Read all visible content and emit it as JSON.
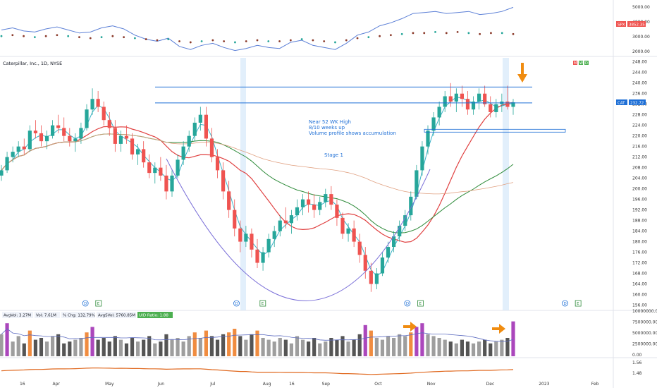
{
  "chart_data": {
    "type": "candlestick",
    "symbol_header": "Caterpillar, Inc., 1D, NYSE",
    "header_flags": [
      "M",
      "W",
      "D"
    ],
    "price_axis": {
      "min": 154,
      "max": 249,
      "ticks": [
        "248.00",
        "244.00",
        "240.00",
        "236.00",
        "232.00",
        "228.00",
        "224.00",
        "220.00",
        "216.00",
        "212.00",
        "208.00",
        "204.00",
        "200.00",
        "196.00",
        "192.00",
        "188.00",
        "184.00",
        "180.00",
        "176.00",
        "172.00",
        "168.00",
        "164.00",
        "160.00",
        "156.00"
      ],
      "last_label": "CAT",
      "last_value": "232.72",
      "last_price": 232.72
    },
    "spx_panel": {
      "ticks": [
        "5000.00",
        "4000.00",
        "3000.00",
        "2000.00"
      ],
      "label": "SPX",
      "value": "3852.35",
      "line_a": [
        4.1,
        4.3,
        4.0,
        3.9,
        4.2,
        4.4,
        4.1,
        3.8,
        3.9,
        4.3,
        4.5,
        4.2,
        3.6,
        3.2,
        3.0,
        3.3,
        2.5,
        2.2,
        2.6,
        2.8,
        2.4,
        2.1,
        2.3,
        2.6,
        2.4,
        2.3,
        2.9,
        3.1,
        2.6,
        2.4,
        2.2,
        2.8,
        3.6,
        3.9,
        4.5,
        4.8,
        5.2,
        5.7,
        5.8,
        5.9,
        5.7,
        5.8,
        5.9,
        5.6,
        5.7,
        5.9,
        6.3
      ],
      "line_b": [
        3.5,
        3.6,
        3.5,
        3.4,
        3.5,
        3.6,
        3.5,
        3.4,
        3.3,
        3.4,
        3.5,
        3.4,
        3.3,
        3.2,
        3.1,
        3.2,
        3.0,
        2.9,
        3.0,
        3.1,
        3.0,
        2.9,
        3.0,
        3.1,
        3.0,
        3.0,
        3.1,
        3.2,
        3.1,
        3.0,
        2.9,
        3.1,
        3.3,
        3.4,
        3.5,
        3.6,
        3.7,
        3.8,
        3.8,
        3.9,
        3.8,
        3.9,
        3.8,
        3.7,
        3.8,
        3.8,
        3.7
      ]
    },
    "annotations": [
      "Near 52 WK High",
      "8/10 weeks up",
      "Volume profile shows accumulation",
      "Stage 1"
    ],
    "x_axis_labels": [
      "16",
      "Apr",
      "May",
      "Jun",
      "Jul",
      "Aug",
      "16",
      "Sep",
      "Oct",
      "Nov",
      "Dec",
      "2023",
      "Feb"
    ],
    "x_axis_positions": [
      0.03,
      0.08,
      0.16,
      0.24,
      0.32,
      0.4,
      0.44,
      0.49,
      0.57,
      0.65,
      0.74,
      0.82,
      0.9
    ],
    "event_markers": [
      {
        "x": 0.13,
        "kind": "D"
      },
      {
        "x": 0.15,
        "kind": "E"
      },
      {
        "x": 0.36,
        "kind": "D"
      },
      {
        "x": 0.4,
        "kind": "E"
      },
      {
        "x": 0.62,
        "kind": "D"
      },
      {
        "x": 0.64,
        "kind": "E"
      },
      {
        "x": 0.86,
        "kind": "D"
      },
      {
        "x": 0.88,
        "kind": "E"
      }
    ],
    "horizontal_levels": [
      238.5,
      232.5
    ],
    "candles": [
      [
        205,
        209,
        203,
        207
      ],
      [
        207,
        214,
        206,
        212
      ],
      [
        212,
        216,
        210,
        214
      ],
      [
        214,
        218,
        212,
        216
      ],
      [
        216,
        219,
        213,
        215
      ],
      [
        215,
        224,
        214,
        222
      ],
      [
        222,
        226,
        219,
        221
      ],
      [
        221,
        224,
        216,
        218
      ],
      [
        218,
        222,
        215,
        220
      ],
      [
        220,
        226,
        219,
        224
      ],
      [
        224,
        228,
        221,
        223
      ],
      [
        223,
        227,
        218,
        220
      ],
      [
        220,
        223,
        216,
        218
      ],
      [
        218,
        221,
        214,
        219
      ],
      [
        219,
        225,
        217,
        223
      ],
      [
        223,
        232,
        222,
        230
      ],
      [
        230,
        238,
        228,
        234
      ],
      [
        234,
        237,
        229,
        231
      ],
      [
        231,
        233,
        224,
        226
      ],
      [
        226,
        229,
        220,
        223
      ],
      [
        223,
        226,
        214,
        217
      ],
      [
        217,
        222,
        214,
        220
      ],
      [
        220,
        224,
        217,
        219
      ],
      [
        219,
        221,
        211,
        213
      ],
      [
        213,
        217,
        209,
        215
      ],
      [
        215,
        218,
        208,
        210
      ],
      [
        210,
        213,
        204,
        206
      ],
      [
        206,
        210,
        202,
        208
      ],
      [
        208,
        212,
        203,
        205
      ],
      [
        205,
        209,
        196,
        199
      ],
      [
        199,
        207,
        197,
        205
      ],
      [
        205,
        213,
        204,
        211
      ],
      [
        211,
        218,
        209,
        216
      ],
      [
        216,
        222,
        214,
        220
      ],
      [
        220,
        227,
        218,
        225
      ],
      [
        225,
        231,
        222,
        228
      ],
      [
        228,
        231,
        216,
        219
      ],
      [
        219,
        223,
        210,
        212
      ],
      [
        212,
        215,
        204,
        207
      ],
      [
        207,
        210,
        196,
        199
      ],
      [
        199,
        203,
        189,
        192
      ],
      [
        192,
        196,
        182,
        185
      ],
      [
        185,
        188,
        176,
        180
      ],
      [
        180,
        186,
        178,
        183
      ],
      [
        183,
        185,
        174,
        177
      ],
      [
        177,
        181,
        170,
        172
      ],
      [
        172,
        178,
        169,
        176
      ],
      [
        176,
        183,
        174,
        181
      ],
      [
        181,
        186,
        178,
        184
      ],
      [
        184,
        190,
        182,
        188
      ],
      [
        188,
        193,
        185,
        187
      ],
      [
        187,
        192,
        183,
        190
      ],
      [
        190,
        196,
        188,
        193
      ],
      [
        193,
        198,
        190,
        196
      ],
      [
        196,
        199,
        191,
        194
      ],
      [
        194,
        198,
        189,
        192
      ],
      [
        192,
        197,
        190,
        195
      ],
      [
        195,
        200,
        193,
        198
      ],
      [
        198,
        201,
        192,
        194
      ],
      [
        194,
        196,
        186,
        189
      ],
      [
        189,
        191,
        181,
        183
      ],
      [
        183,
        187,
        180,
        185
      ],
      [
        185,
        188,
        178,
        180
      ],
      [
        180,
        183,
        172,
        175
      ],
      [
        175,
        178,
        166,
        169
      ],
      [
        169,
        172,
        161,
        164
      ],
      [
        164,
        170,
        162,
        168
      ],
      [
        168,
        176,
        167,
        174
      ],
      [
        174,
        180,
        172,
        178
      ],
      [
        178,
        184,
        176,
        182
      ],
      [
        182,
        188,
        180,
        186
      ],
      [
        186,
        192,
        184,
        190
      ],
      [
        190,
        199,
        188,
        197
      ],
      [
        197,
        209,
        196,
        207
      ],
      [
        207,
        218,
        205,
        216
      ],
      [
        216,
        224,
        213,
        222
      ],
      [
        222,
        229,
        220,
        227
      ],
      [
        227,
        233,
        224,
        231
      ],
      [
        231,
        237,
        229,
        235
      ],
      [
        235,
        240,
        231,
        233
      ],
      [
        233,
        238,
        229,
        236
      ],
      [
        236,
        239,
        231,
        234
      ],
      [
        234,
        237,
        228,
        230
      ],
      [
        230,
        235,
        228,
        233
      ],
      [
        233,
        238,
        230,
        236
      ],
      [
        236,
        239,
        231,
        232
      ],
      [
        232,
        235,
        227,
        229
      ],
      [
        229,
        234,
        227,
        232
      ],
      [
        232,
        236,
        229,
        233
      ],
      [
        233,
        239,
        230,
        231
      ],
      [
        231,
        234,
        228,
        232.72
      ]
    ],
    "volume": [
      0.6,
      0.9,
      0.4,
      0.55,
      0.35,
      0.7,
      0.45,
      0.5,
      0.4,
      0.55,
      0.6,
      0.35,
      0.4,
      0.45,
      0.5,
      0.65,
      0.8,
      0.45,
      0.5,
      0.4,
      0.55,
      0.45,
      0.35,
      0.5,
      0.4,
      0.45,
      0.55,
      0.35,
      0.4,
      0.6,
      0.45,
      0.5,
      0.4,
      0.55,
      0.65,
      0.5,
      0.7,
      0.55,
      0.45,
      0.6,
      0.65,
      0.75,
      0.55,
      0.45,
      0.6,
      0.7,
      0.5,
      0.45,
      0.4,
      0.5,
      0.45,
      0.35,
      0.55,
      0.45,
      0.4,
      0.5,
      0.35,
      0.4,
      0.5,
      0.45,
      0.55,
      0.4,
      0.45,
      0.6,
      0.85,
      0.7,
      0.5,
      0.45,
      0.55,
      0.5,
      0.6,
      0.55,
      0.65,
      0.8,
      0.9,
      0.6,
      0.55,
      0.5,
      0.45,
      0.4,
      0.35,
      0.45,
      0.4,
      0.35,
      0.4,
      0.45,
      0.35,
      0.4,
      0.45,
      0.5,
      0.95
    ],
    "volume_axis": [
      "10000000.00",
      "7500000.00",
      "5000000.00",
      "2500000.00",
      "0.00"
    ],
    "volume_stats": [
      "AvgVol: 3.27M",
      "Vol: 7.61M",
      "% Chg: 132.79%",
      "AvgSVol: 5760.85M",
      "U/D Ratio: 1.88"
    ],
    "rs_axis": [
      "1.56",
      "1.48"
    ],
    "colors": {
      "up": "#26a69a",
      "down": "#ef5350",
      "ma_fast": "#3bb3c8",
      "ma_mid": "#e04040",
      "ma_slow": "#2e8b3a",
      "ma_long": "#e0a080",
      "spx": "#5b7fd6",
      "annotation": "#1e6fd6",
      "arrow": "#f08c10"
    }
  }
}
